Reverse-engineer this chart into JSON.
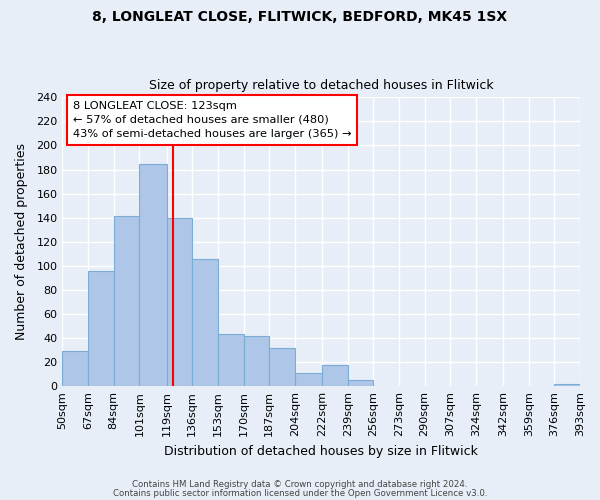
{
  "title": "8, LONGLEAT CLOSE, FLITWICK, BEDFORD, MK45 1SX",
  "subtitle": "Size of property relative to detached houses in Flitwick",
  "xlabel": "Distribution of detached houses by size in Flitwick",
  "ylabel": "Number of detached properties",
  "bar_edges": [
    50,
    67,
    84,
    101,
    119,
    136,
    153,
    170,
    187,
    204,
    222,
    239,
    256,
    273,
    290,
    307,
    324,
    342,
    359,
    376,
    393
  ],
  "bar_heights": [
    29,
    96,
    141,
    185,
    140,
    106,
    43,
    42,
    32,
    11,
    18,
    5,
    0,
    0,
    0,
    0,
    0,
    0,
    0,
    2
  ],
  "bar_color": "#aec6e8",
  "bar_edge_color": "#7aadd4",
  "reference_line_x": 123,
  "reference_line_color": "red",
  "ylim": [
    0,
    240
  ],
  "xlim": [
    50,
    393
  ],
  "tick_labels": [
    "50sqm",
    "67sqm",
    "84sqm",
    "101sqm",
    "119sqm",
    "136sqm",
    "153sqm",
    "170sqm",
    "187sqm",
    "204sqm",
    "222sqm",
    "239sqm",
    "256sqm",
    "273sqm",
    "290sqm",
    "307sqm",
    "324sqm",
    "342sqm",
    "359sqm",
    "376sqm",
    "393sqm"
  ],
  "annotation_title": "8 LONGLEAT CLOSE: 123sqm",
  "annotation_line1": "← 57% of detached houses are smaller (480)",
  "annotation_line2": "43% of semi-detached houses are larger (365) →",
  "footer_line1": "Contains HM Land Registry data © Crown copyright and database right 2024.",
  "footer_line2": "Contains public sector information licensed under the Open Government Licence v3.0.",
  "background_color": "#e8eef7",
  "grid_color": "white",
  "title_fontsize": 10,
  "subtitle_fontsize": 9,
  "yticks": [
    0,
    20,
    40,
    60,
    80,
    100,
    120,
    140,
    160,
    180,
    200,
    220,
    240
  ]
}
